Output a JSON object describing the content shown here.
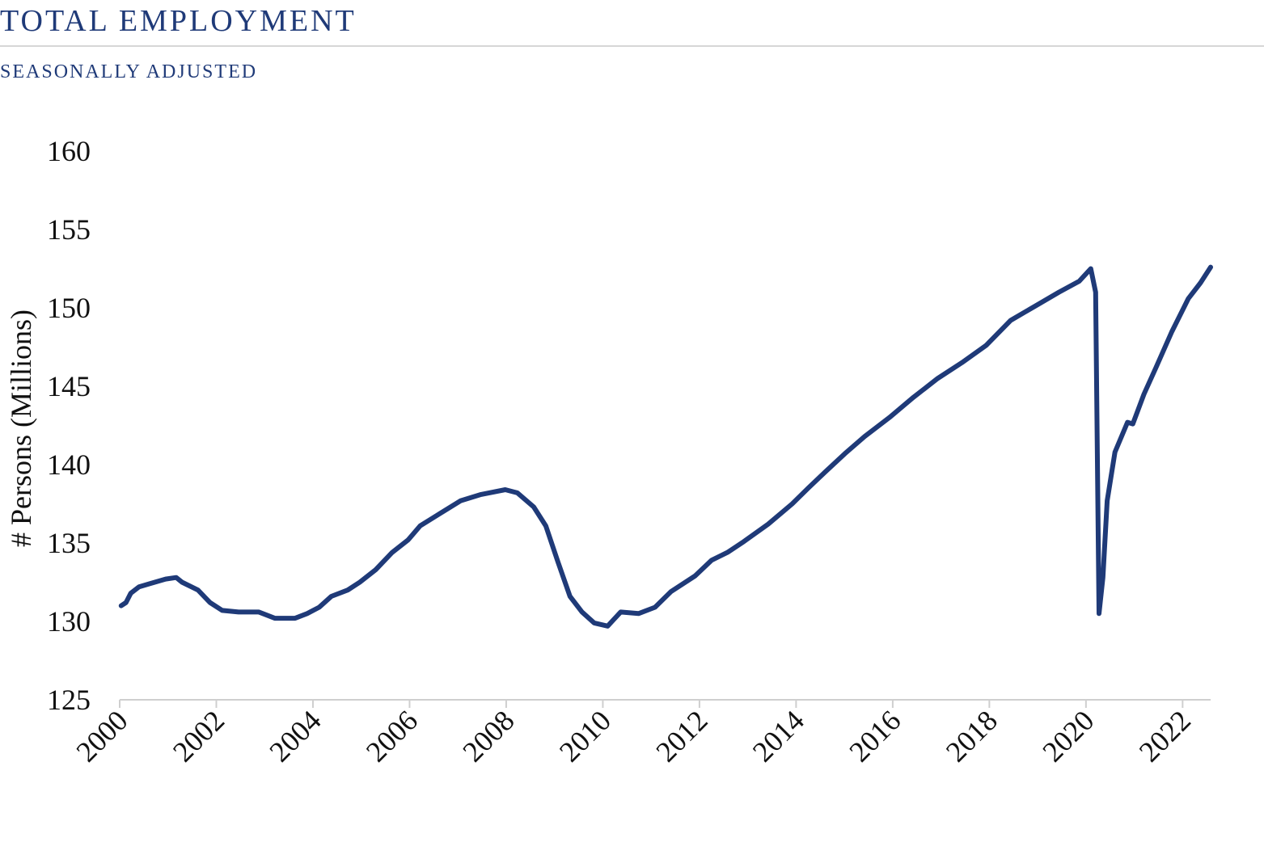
{
  "chart_data": {
    "type": "line",
    "title": "TOTAL EMPLOYMENT",
    "subtitle": "SEASONALLY ADJUSTED",
    "y_label": "# Persons (Millions)",
    "color": "#1f3a78",
    "x": [
      2000.03,
      2000.13,
      2000.23,
      2000.4,
      2000.62,
      2000.95,
      2001.17,
      2001.29,
      2001.62,
      2001.87,
      2002.12,
      2002.46,
      2002.88,
      2003.21,
      2003.63,
      2003.88,
      2004.13,
      2004.38,
      2004.72,
      2004.97,
      2005.3,
      2005.64,
      2005.97,
      2006.22,
      2006.64,
      2007.06,
      2007.48,
      2007.98,
      2008.23,
      2008.57,
      2008.82,
      2009.07,
      2009.32,
      2009.57,
      2009.82,
      2010.1,
      2010.37,
      2010.74,
      2011.08,
      2011.41,
      2011.91,
      2012.25,
      2012.58,
      2012.92,
      2013.42,
      2013.92,
      2014.25,
      2014.59,
      2015.01,
      2015.42,
      2015.93,
      2016.43,
      2016.93,
      2017.43,
      2017.93,
      2018.44,
      2018.94,
      2019.44,
      2019.86,
      2020.1,
      2020.2,
      2020.27,
      2020.35,
      2020.44,
      2020.6,
      2020.86,
      2020.97,
      2021.2,
      2021.45,
      2021.78,
      2022.12,
      2022.37,
      2022.58
    ],
    "values": [
      131.0,
      131.2,
      131.8,
      132.2,
      132.4,
      132.7,
      132.8,
      132.5,
      132.0,
      131.2,
      130.7,
      130.6,
      130.6,
      130.2,
      130.2,
      130.5,
      130.9,
      131.6,
      132.0,
      132.5,
      133.3,
      134.4,
      135.2,
      136.1,
      136.9,
      137.7,
      138.1,
      138.4,
      138.2,
      137.3,
      136.1,
      133.8,
      131.6,
      130.6,
      129.9,
      129.7,
      130.6,
      130.5,
      130.9,
      131.9,
      132.9,
      133.9,
      134.4,
      135.1,
      136.2,
      137.5,
      138.5,
      139.5,
      140.7,
      141.8,
      143.0,
      144.3,
      145.5,
      146.5,
      147.6,
      149.2,
      150.1,
      151.0,
      151.7,
      152.5,
      151.0,
      130.5,
      132.8,
      137.7,
      140.8,
      142.7,
      142.6,
      144.5,
      146.2,
      148.5,
      150.6,
      151.6,
      152.6
    ],
    "xlim": [
      2000,
      2022.58
    ],
    "xticks": [
      2000,
      2002,
      2004,
      2006,
      2008,
      2010,
      2012,
      2014,
      2016,
      2018,
      2020,
      2022
    ],
    "ylim": [
      125,
      160
    ],
    "yticks": [
      125,
      130,
      135,
      140,
      145,
      150,
      155,
      160
    ]
  }
}
